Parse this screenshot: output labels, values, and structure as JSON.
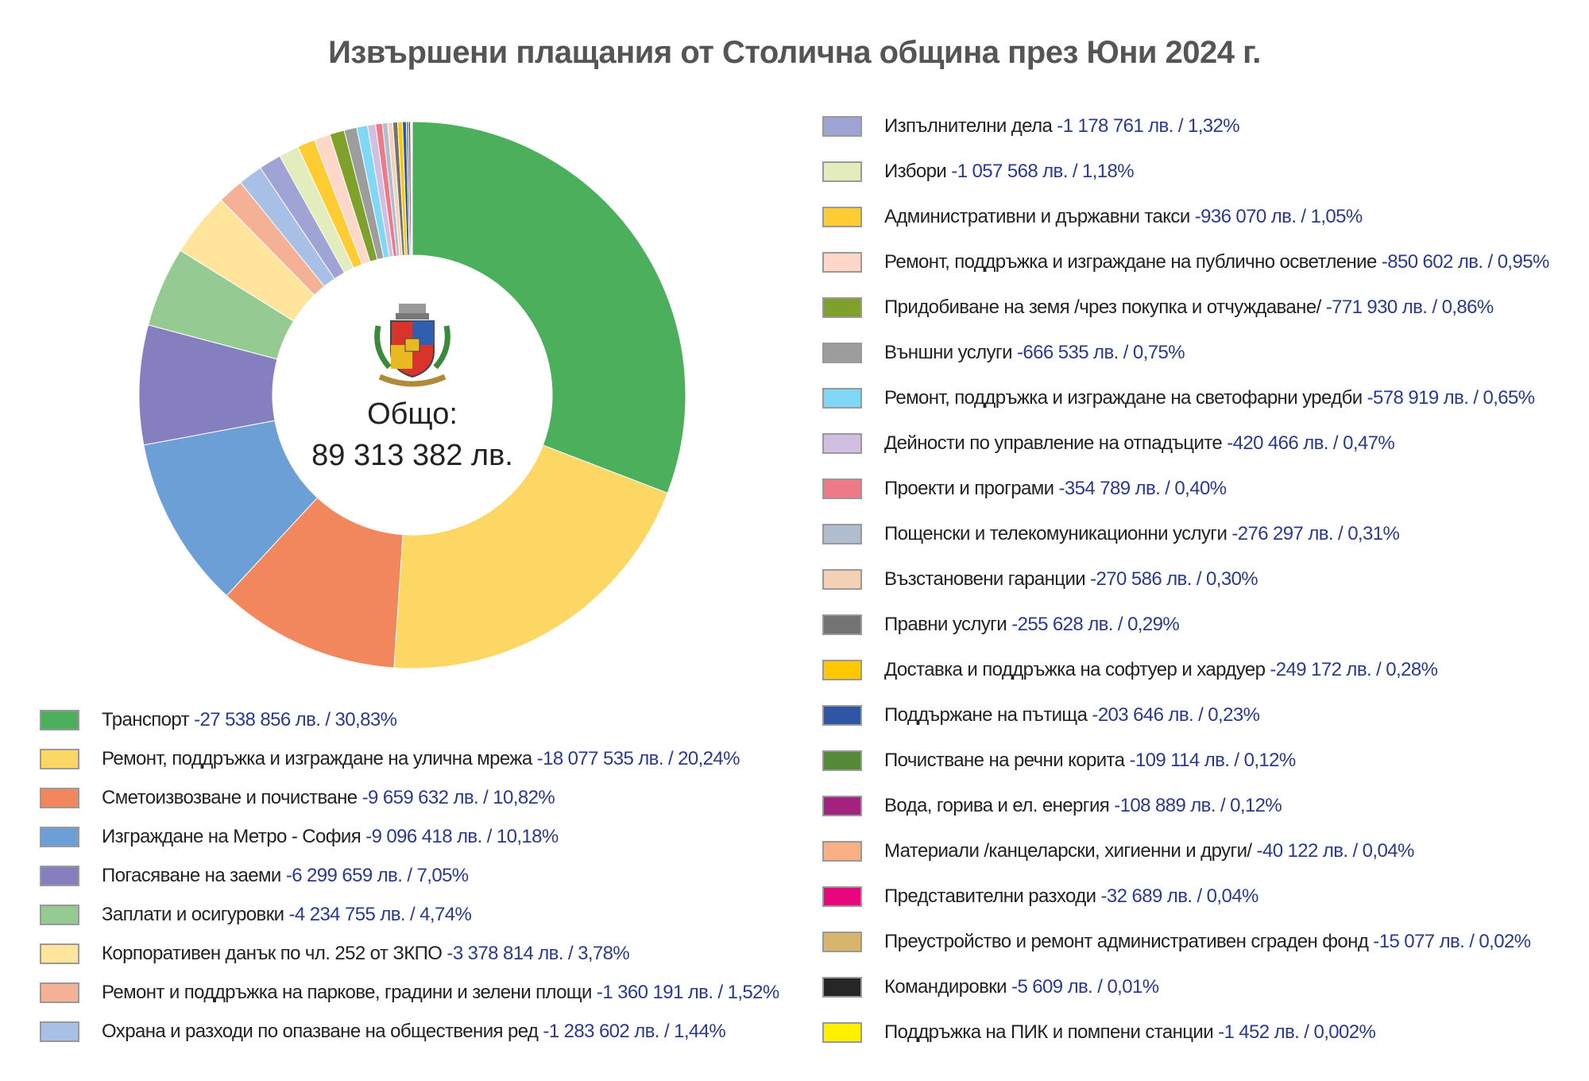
{
  "chart_data": {
    "type": "pie",
    "subtype": "donut",
    "title": "Извършени плащания от Столична община през Юни 2024 г.",
    "center_label": "Общо:",
    "center_total": "89 313 382 лв.",
    "legend_placement": "bottom-left and right",
    "slices": [
      {
        "label": "Транспорт",
        "amount": "27 538 856 лв.",
        "value": 27538856,
        "percent": "30,83%",
        "color": "#4caf5c"
      },
      {
        "label": "Ремонт, поддръжка и изграждане на улична мрежа",
        "amount": "18 077 535 лв.",
        "value": 18077535,
        "percent": "20,24%",
        "color": "#fdd764"
      },
      {
        "label": "Сметоизвозване и почистване",
        "amount": "9 659 632 лв.",
        "value": 9659632,
        "percent": "10,82%",
        "color": "#f2865d"
      },
      {
        "label": "Изграждане на Метро - София",
        "amount": "9 096 418 лв.",
        "value": 9096418,
        "percent": "10,18%",
        "color": "#6c9fd6"
      },
      {
        "label": "Погасяване на заеми",
        "amount": "6 299 659 лв.",
        "value": 6299659,
        "percent": "7,05%",
        "color": "#857fc0"
      },
      {
        "label": "Заплати и осигуровки",
        "amount": "4 234 755 лв.",
        "value": 4234755,
        "percent": "4,74%",
        "color": "#95cb93"
      },
      {
        "label": "Корпоративен данък по чл. 252 от ЗКПО",
        "amount": "3 378 814 лв.",
        "value": 3378814,
        "percent": "3,78%",
        "color": "#ffe59b"
      },
      {
        "label": "Ремонт и поддръжка на паркове, градини и зелени площи",
        "amount": "1 360 191 лв.",
        "value": 1360191,
        "percent": "1,52%",
        "color": "#f5b195"
      },
      {
        "label": "Охрана и разходи по опазване на обществения ред",
        "amount": "1 283 602 лв.",
        "value": 1283602,
        "percent": "1,44%",
        "color": "#a8c0e6"
      },
      {
        "label": "Изпълнителни дела",
        "amount": "1 178 761 лв.",
        "value": 1178761,
        "percent": "1,32%",
        "color": "#9fa4d4"
      },
      {
        "label": "Избори",
        "amount": "1 057 568 лв.",
        "value": 1057568,
        "percent": "1,18%",
        "color": "#e2ecbd"
      },
      {
        "label": "Административни и държавни такси",
        "amount": "936 070 лв.",
        "value": 936070,
        "percent": "1,05%",
        "color": "#ffcd33"
      },
      {
        "label": "Ремонт, поддръжка и изграждане на публично осветление",
        "amount": "850 602 лв.",
        "value": 850602,
        "percent": "0,95%",
        "color": "#fdd8c8"
      },
      {
        "label": "Придобиване на земя /чрез покупка и отчуждаване/",
        "amount": "771 930 лв.",
        "value": 771930,
        "percent": "0,86%",
        "color": "#7fa02b"
      },
      {
        "label": "Външни услуги",
        "amount": "666 535 лв.",
        "value": 666535,
        "percent": "0,75%",
        "color": "#9d9d9d"
      },
      {
        "label": "Ремонт, поддръжка и изграждане на светофарни уредби",
        "amount": "578 919 лв.",
        "value": 578919,
        "percent": "0,65%",
        "color": "#80d8f6"
      },
      {
        "label": "Дейности по управление на отпадъците",
        "amount": "420 466 лв.",
        "value": 420466,
        "percent": "0,47%",
        "color": "#d0bfe0"
      },
      {
        "label": "Проекти и програми",
        "amount": "354 789 лв.",
        "value": 354789,
        "percent": "0,40%",
        "color": "#ee7a88"
      },
      {
        "label": "Пощенски и телекомуникационни услуги",
        "amount": "276 297 лв.",
        "value": 276297,
        "percent": "0,31%",
        "color": "#b0bdcf"
      },
      {
        "label": "Възстановени гаранции",
        "amount": "270 586 лв.",
        "value": 270586,
        "percent": "0,30%",
        "color": "#f4d0b4"
      },
      {
        "label": "Правни услуги",
        "amount": "255 628 лв.",
        "value": 255628,
        "percent": "0,29%",
        "color": "#737373"
      },
      {
        "label": "Доставка и поддръжка на софтуер и хардуер",
        "amount": "249 172 лв.",
        "value": 249172,
        "percent": "0,28%",
        "color": "#ffc800"
      },
      {
        "label": "Поддържане на пътища",
        "amount": "203 646 лв.",
        "value": 203646,
        "percent": "0,23%",
        "color": "#2f55a4"
      },
      {
        "label": "Почистване на речни корита",
        "amount": "109 114 лв.",
        "value": 109114,
        "percent": "0,12%",
        "color": "#548a37"
      },
      {
        "label": "Вода, горива и ел. енергия",
        "amount": "108 889 лв.",
        "value": 108889,
        "percent": "0,12%",
        "color": "#a3227f"
      },
      {
        "label": "Материали /канцеларски, хигиенни и други/",
        "amount": "40 122 лв.",
        "value": 40122,
        "percent": "0,04%",
        "color": "#f6b084"
      },
      {
        "label": "Представителни разходи",
        "amount": "32 689 лв.",
        "value": 32689,
        "percent": "0,04%",
        "color": "#e8067f"
      },
      {
        "label": "Преустройство и ремонт административен сграден фонд",
        "amount": "15 077 лв.",
        "value": 15077,
        "percent": "0,02%",
        "color": "#d8b56d"
      },
      {
        "label": "Командировки",
        "amount": "5 609 лв.",
        "value": 5609,
        "percent": "0,01%",
        "color": "#262626"
      },
      {
        "label": "Поддръжка на ПИК и помпени станции",
        "amount": "1 452 лв.",
        "value": 1452,
        "percent": "0,002%",
        "color": "#fff000"
      }
    ]
  }
}
